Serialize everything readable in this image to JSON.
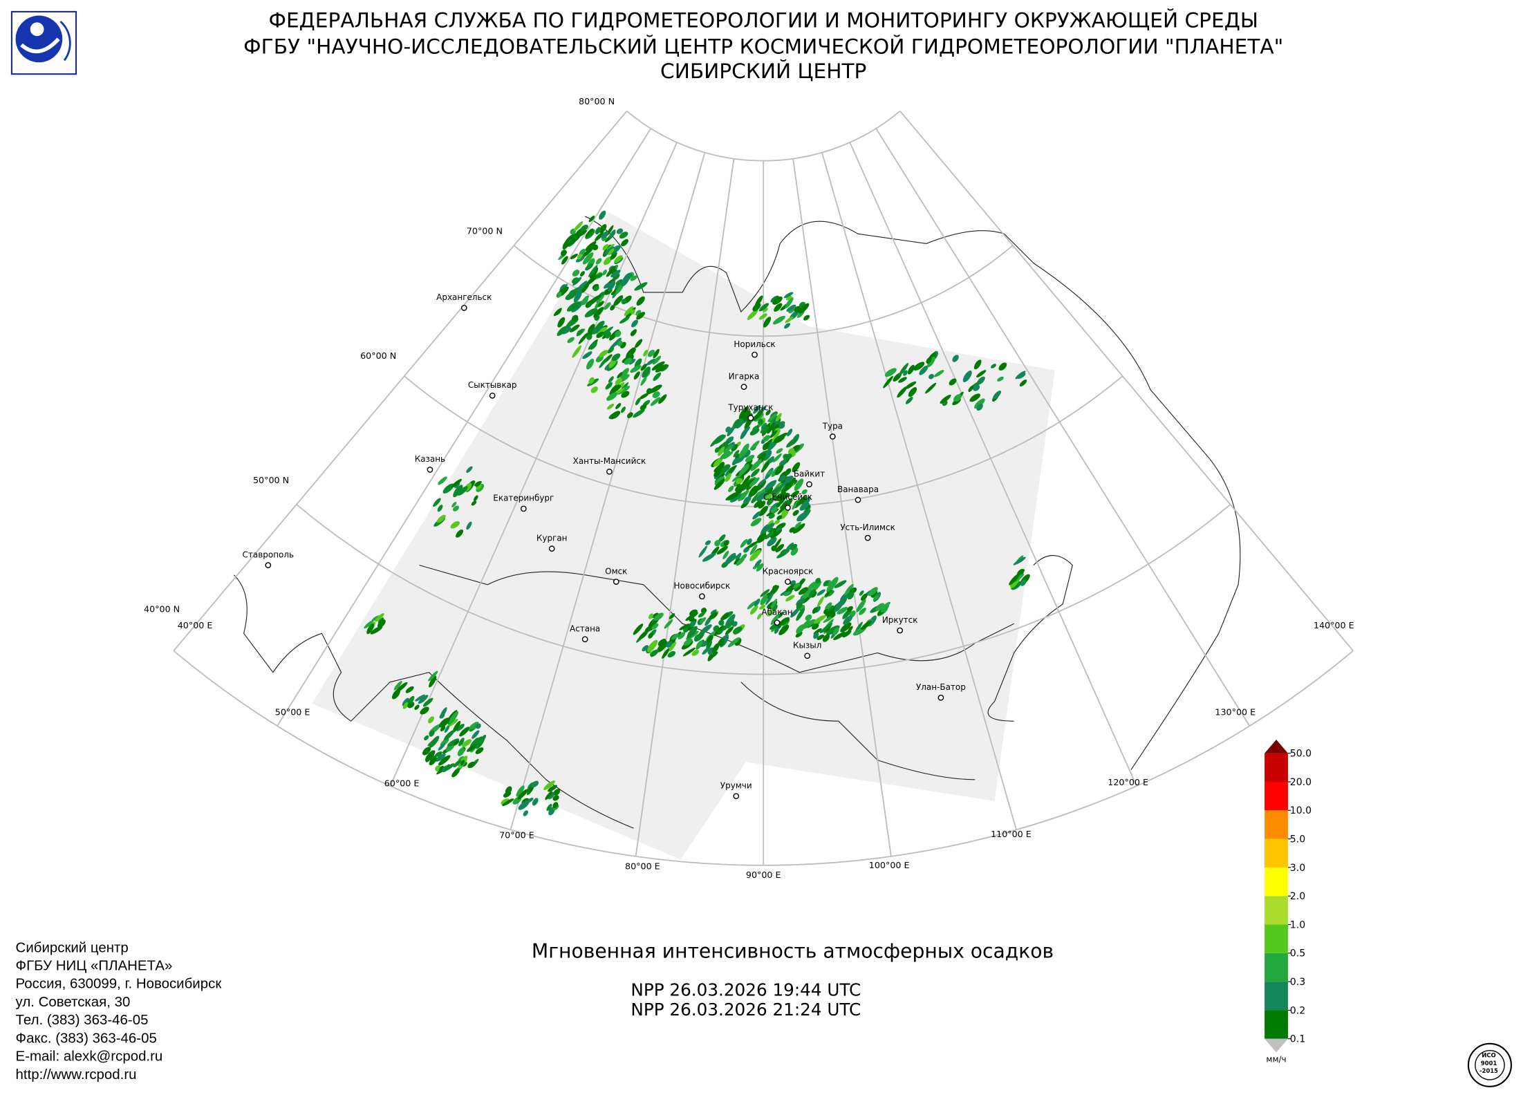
{
  "header": {
    "lines": [
      "ФЕДЕРАЛЬНАЯ СЛУЖБА ПО ГИДРОМЕТЕОРОЛОГИИ И МОНИТОРИНГУ ОКРУЖАЮЩЕЙ СРЕДЫ",
      "ФГБУ \"НАУЧНО-ИССЛЕДОВАТЕЛЬСКИЙ ЦЕНТР КОСМИЧЕСКОЙ ГИДРОМЕТЕОРОЛОГИИ \"ПЛАНЕТА\"",
      "СИБИРСКИЙ ЦЕНТР"
    ]
  },
  "map": {
    "lat_labels": [
      "80°00 N",
      "70°00 N",
      "60°00 N",
      "50°00 N",
      "40°00 N"
    ],
    "lon_labels": [
      "40°00 E",
      "50°00 E",
      "60°00 E",
      "70°00 E",
      "80°00 E",
      "90°00 E",
      "100°00 E",
      "110°00 E",
      "120°00 E",
      "130°00 E",
      "140°00 E"
    ],
    "cities": [
      "Архангельск",
      "Сыктывкар",
      "Казань",
      "Екатеринбург",
      "Ставрополь",
      "Курган",
      "Ханты-Мансийск",
      "Омск",
      "Новосибирск",
      "Астана",
      "Норильск",
      "Игарка",
      "Туруханск",
      "Тура",
      "Байкит",
      "Ванавара",
      "С.Енисейск",
      "Усть-Илимск",
      "Красноярск",
      "Абакан",
      "Кызыл",
      "Иркутск",
      "Улан-Батор",
      "Урумчи"
    ]
  },
  "product": {
    "title": "Мгновенная интенсивность атмосферных осадков",
    "passes": [
      "NPP 26.03.2026  19:44 UTC",
      "NPP 26.03.2026  21:24 UTC"
    ]
  },
  "colorbar": {
    "unit": "мм/ч",
    "labels": [
      "0.1",
      "0.2",
      "0.3",
      "0.5",
      "1.0",
      "2.0",
      "3.0",
      "5.0",
      "10.0",
      "20.0",
      "50.0"
    ],
    "colors": [
      "#007a00",
      "#13875a",
      "#22a83c",
      "#55c81e",
      "#a9dc2c",
      "#ffff00",
      "#ffc400",
      "#ff8c00",
      "#ff0000",
      "#c80000"
    ],
    "over_color": "#7a0000",
    "under_color": "#c0c0c0"
  },
  "contacts": {
    "lines": [
      "Сибирский центр",
      "ФГБУ НИЦ «ПЛАНЕТА»",
      "Россия, 630099, г. Новосибирск",
      "ул. Советская, 30",
      "Тел. (383) 363-46-05",
      "Факс. (383) 363-46-05",
      "E-mail: alexk@rcpod.ru",
      "http://www.rcpod.ru"
    ]
  },
  "iso_stamp": {
    "lines": [
      "ИСО",
      "9001",
      "-2015"
    ]
  }
}
